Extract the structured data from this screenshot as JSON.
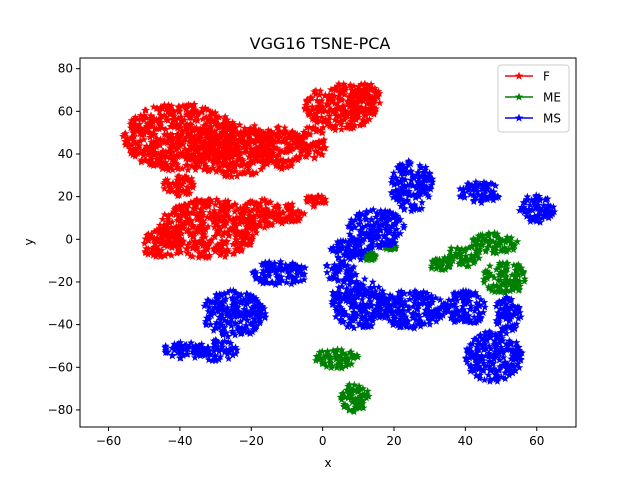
{
  "chart_data": {
    "type": "scatter",
    "title": "VGG16 TSNE-PCA",
    "xlabel": "x",
    "ylabel": "y",
    "xlim": [
      -68,
      71
    ],
    "ylim": [
      -88,
      85
    ],
    "xticks": [
      -60,
      -40,
      -20,
      0,
      20,
      40,
      60
    ],
    "yticks": [
      -80,
      -60,
      -40,
      -20,
      0,
      20,
      40,
      60,
      80
    ],
    "xtick_labels": [
      "−60",
      "−40",
      "−20",
      "0",
      "20",
      "40",
      "60"
    ],
    "ytick_labels": [
      "−80",
      "−60",
      "−40",
      "−20",
      "0",
      "20",
      "40",
      "60",
      "80"
    ],
    "marker": "star",
    "grid": false,
    "legend_position": "top-right",
    "series": [
      {
        "name": "F",
        "color": "#ff0000",
        "clusters": [
          {
            "cx": -40,
            "cy": 48,
            "rx": 16,
            "ry": 16
          },
          {
            "cx": -25,
            "cy": 42,
            "rx": 12,
            "ry": 13
          },
          {
            "cx": -12,
            "cy": 43,
            "rx": 7,
            "ry": 10
          },
          {
            "cx": 5,
            "cy": 62,
            "rx": 10,
            "ry": 11
          },
          {
            "cx": -3,
            "cy": 45,
            "rx": 4,
            "ry": 8
          },
          {
            "cx": 12,
            "cy": 66,
            "rx": 5,
            "ry": 7
          },
          {
            "cx": -32,
            "cy": 5,
            "rx": 14,
            "ry": 14
          },
          {
            "cx": -45,
            "cy": -2,
            "rx": 6,
            "ry": 7
          },
          {
            "cx": -18,
            "cy": 12,
            "rx": 6,
            "ry": 7
          },
          {
            "cx": -10,
            "cy": 12,
            "rx": 5,
            "ry": 5
          },
          {
            "cx": -2,
            "cy": 18,
            "rx": 3,
            "ry": 3
          },
          {
            "cx": -40,
            "cy": 25,
            "rx": 5,
            "ry": 5
          }
        ]
      },
      {
        "name": "ME",
        "color": "#008000",
        "clusters": [
          {
            "cx": 48,
            "cy": -2,
            "rx": 7,
            "ry": 5
          },
          {
            "cx": 51,
            "cy": -18,
            "rx": 6,
            "ry": 8
          },
          {
            "cx": 39,
            "cy": -8,
            "rx": 5,
            "ry": 5
          },
          {
            "cx": 33,
            "cy": -12,
            "rx": 3,
            "ry": 3
          },
          {
            "cx": 4,
            "cy": -56,
            "rx": 6,
            "ry": 5
          },
          {
            "cx": 9,
            "cy": -74,
            "rx": 4,
            "ry": 7
          },
          {
            "cx": 19,
            "cy": -3,
            "rx": 2,
            "ry": 2
          },
          {
            "cx": 13,
            "cy": -8,
            "rx": 2,
            "ry": 2
          }
        ]
      },
      {
        "name": "MS",
        "color": "#0000ff",
        "clusters": [
          {
            "cx": 25,
            "cy": 25,
            "rx": 6,
            "ry": 12
          },
          {
            "cx": 44,
            "cy": 22,
            "rx": 6,
            "ry": 5
          },
          {
            "cx": 60,
            "cy": 14,
            "rx": 5,
            "ry": 7
          },
          {
            "cx": 15,
            "cy": 5,
            "rx": 8,
            "ry": 9
          },
          {
            "cx": 8,
            "cy": -5,
            "rx": 6,
            "ry": 5
          },
          {
            "cx": -12,
            "cy": -16,
            "rx": 8,
            "ry": 6
          },
          {
            "cx": 5,
            "cy": -15,
            "rx": 5,
            "ry": 5
          },
          {
            "cx": 10,
            "cy": -30,
            "rx": 8,
            "ry": 12
          },
          {
            "cx": 25,
            "cy": -33,
            "rx": 10,
            "ry": 9
          },
          {
            "cx": 40,
            "cy": -32,
            "rx": 6,
            "ry": 8
          },
          {
            "cx": 48,
            "cy": -55,
            "rx": 8,
            "ry": 12
          },
          {
            "cx": -25,
            "cy": -35,
            "rx": 9,
            "ry": 11
          },
          {
            "cx": -38,
            "cy": -52,
            "rx": 7,
            "ry": 4
          },
          {
            "cx": -30,
            "cy": -52,
            "rx": 6,
            "ry": 5
          },
          {
            "cx": 52,
            "cy": -35,
            "rx": 4,
            "ry": 8
          }
        ]
      }
    ]
  }
}
